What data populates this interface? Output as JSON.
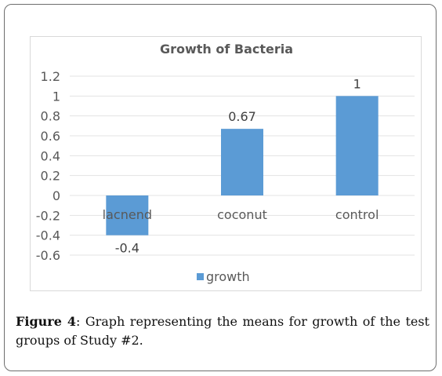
{
  "chart_data": {
    "type": "bar",
    "title": "Growth of Bacteria",
    "categories": [
      "lacnend",
      "coconut",
      "control"
    ],
    "series": [
      {
        "name": "growth",
        "values": [
          -0.4,
          0.67,
          1
        ],
        "color": "#5b9bd5"
      }
    ],
    "data_labels": [
      "-0.4",
      "0.67",
      "1"
    ],
    "y_ticks": [
      "1.2",
      "1",
      "0.8",
      "0.6",
      "0.4",
      "0.2",
      "0",
      "-0.2",
      "-0.4",
      "-0.6"
    ],
    "ylim": [
      -0.6,
      1.2
    ],
    "grid": true,
    "legend": "bottom",
    "xlabel": "",
    "ylabel": ""
  },
  "caption": {
    "label": "Figure 4",
    "text": ": Graph representing the means for growth of the test groups of Study #2."
  }
}
